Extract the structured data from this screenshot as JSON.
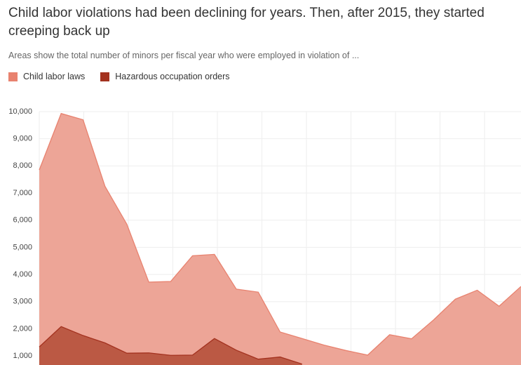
{
  "chart_data": {
    "type": "area",
    "title": "Child labor violations had been declining for years. Then, after 2015, they started creeping back up",
    "subtitle": "Areas show the total number of minors per fiscal year who were employed in violation of ...",
    "categories": [
      null,
      null,
      null,
      null,
      null,
      null,
      null,
      null,
      null,
      null,
      null,
      null,
      null,
      null,
      null,
      null,
      null,
      null,
      null,
      null,
      null,
      null,
      null
    ],
    "series": [
      {
        "name": "Child labor laws",
        "color": "#e8826f",
        "fill": "#eca091",
        "values": [
          7850,
          9930,
          9700,
          7250,
          5850,
          3720,
          3740,
          4690,
          4740,
          3460,
          3350,
          1880,
          1640,
          1400,
          1200,
          1030,
          1780,
          1630,
          2320,
          3090,
          3420,
          2830,
          3560
        ]
      },
      {
        "name": "Hazardous occupation orders",
        "color": "#a3321f",
        "fill": "#b8543f",
        "values": [
          1330,
          2080,
          1750,
          1480,
          1100,
          1110,
          1020,
          1030,
          1640,
          1210,
          880,
          960,
          700,
          null,
          null,
          null,
          null,
          null,
          null,
          null,
          null,
          null,
          null
        ]
      }
    ],
    "ylim": [
      665,
      10000
    ],
    "yticks": [
      {
        "value": 1000,
        "label": "1,000"
      },
      {
        "value": 2000,
        "label": "2,000"
      },
      {
        "value": 3000,
        "label": "3,000"
      },
      {
        "value": 4000,
        "label": "4,000"
      },
      {
        "value": 5000,
        "label": "5,000"
      },
      {
        "value": 6000,
        "label": "6,000"
      },
      {
        "value": 7000,
        "label": "7,000"
      },
      {
        "value": 8000,
        "label": "8,000"
      },
      {
        "value": 9000,
        "label": "9,000"
      },
      {
        "value": 10000,
        "label": "10,000"
      }
    ],
    "grid": true
  }
}
